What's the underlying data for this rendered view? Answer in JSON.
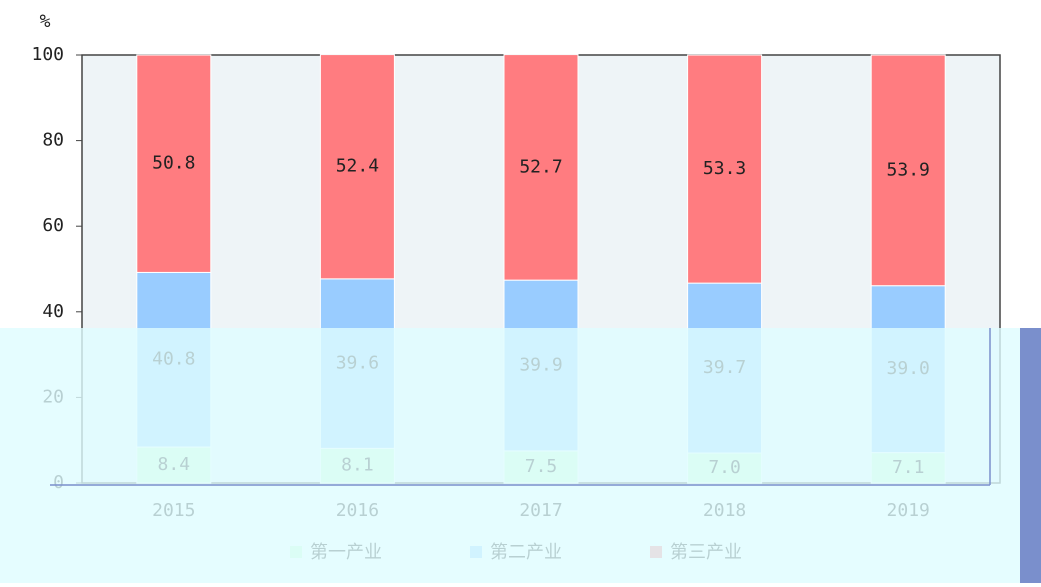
{
  "chart_data": {
    "type": "stacked_bar",
    "y_unit": "%",
    "categories": [
      "2015",
      "2016",
      "2017",
      "2018",
      "2019"
    ],
    "series": [
      {
        "name": "第一产业",
        "color": "#ccffcc",
        "values": [
          8.4,
          8.1,
          7.5,
          7.0,
          7.1
        ],
        "value_labels": [
          "8.4",
          "8.1",
          "7.5",
          "7.0",
          "7.1"
        ]
      },
      {
        "name": "第二产业",
        "color": "#99ccff",
        "values": [
          40.8,
          39.6,
          39.9,
          39.7,
          39.0
        ],
        "value_labels": [
          "40.8",
          "39.6",
          "39.9",
          "39.7",
          "39.0"
        ]
      },
      {
        "name": "第三产业",
        "color": "#ff7c80",
        "values": [
          50.8,
          52.4,
          52.7,
          53.3,
          53.9
        ],
        "value_labels": [
          "50.8",
          "52.4",
          "52.7",
          "53.3",
          "53.9"
        ]
      }
    ],
    "ylim": [
      0,
      100
    ],
    "yticks": [
      0,
      20,
      40,
      60,
      80,
      100
    ]
  }
}
